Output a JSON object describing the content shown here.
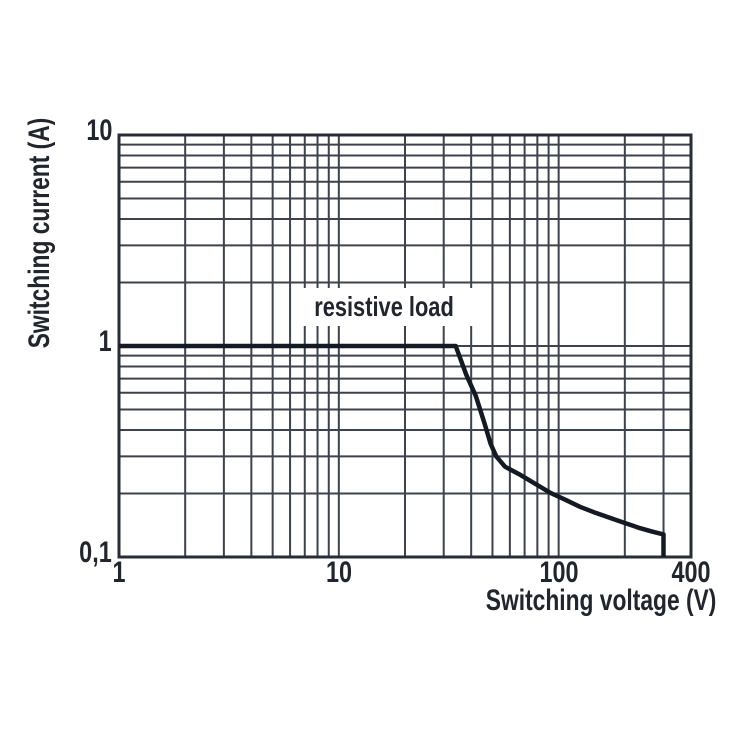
{
  "chart_data": {
    "type": "line",
    "title": "",
    "xlabel": "Switching voltage (V)",
    "ylabel": "Switching current (A)",
    "x_scale": "log",
    "y_scale": "log",
    "xlim": [
      1,
      400
    ],
    "ylim": [
      0.1,
      10
    ],
    "grid": "log minor gridlines on, both axes",
    "legend_position": "none",
    "x_ticks": [
      {
        "value": 1,
        "label": "1"
      },
      {
        "value": 10,
        "label": "10"
      },
      {
        "value": 100,
        "label": "100"
      },
      {
        "value": 400,
        "label": "400"
      }
    ],
    "y_ticks": [
      {
        "value": 0.1,
        "label": "0,1"
      },
      {
        "value": 1,
        "label": "1"
      },
      {
        "value": 10,
        "label": "10"
      }
    ],
    "annotation": {
      "text": "resistive load",
      "x": 16,
      "y": 1.53
    },
    "series": [
      {
        "name": "resistive load",
        "points": [
          [
            1,
            1
          ],
          [
            34,
            1
          ],
          [
            38,
            0.73
          ],
          [
            42,
            0.58
          ],
          [
            46,
            0.43
          ],
          [
            49,
            0.345
          ],
          [
            52,
            0.3
          ],
          [
            57,
            0.268
          ],
          [
            67,
            0.245
          ],
          [
            79,
            0.221
          ],
          [
            92,
            0.201
          ],
          [
            108,
            0.186
          ],
          [
            125,
            0.173
          ],
          [
            147,
            0.162
          ],
          [
            172,
            0.153
          ],
          [
            200,
            0.145
          ],
          [
            235,
            0.137
          ],
          [
            266,
            0.132
          ],
          [
            300,
            0.128
          ],
          [
            300,
            0.1
          ]
        ]
      }
    ],
    "colors": {
      "background": "#ffffff",
      "grid": "#3d434e",
      "border": "#272c37",
      "curve": "#141a24",
      "text": "#20252e"
    }
  }
}
